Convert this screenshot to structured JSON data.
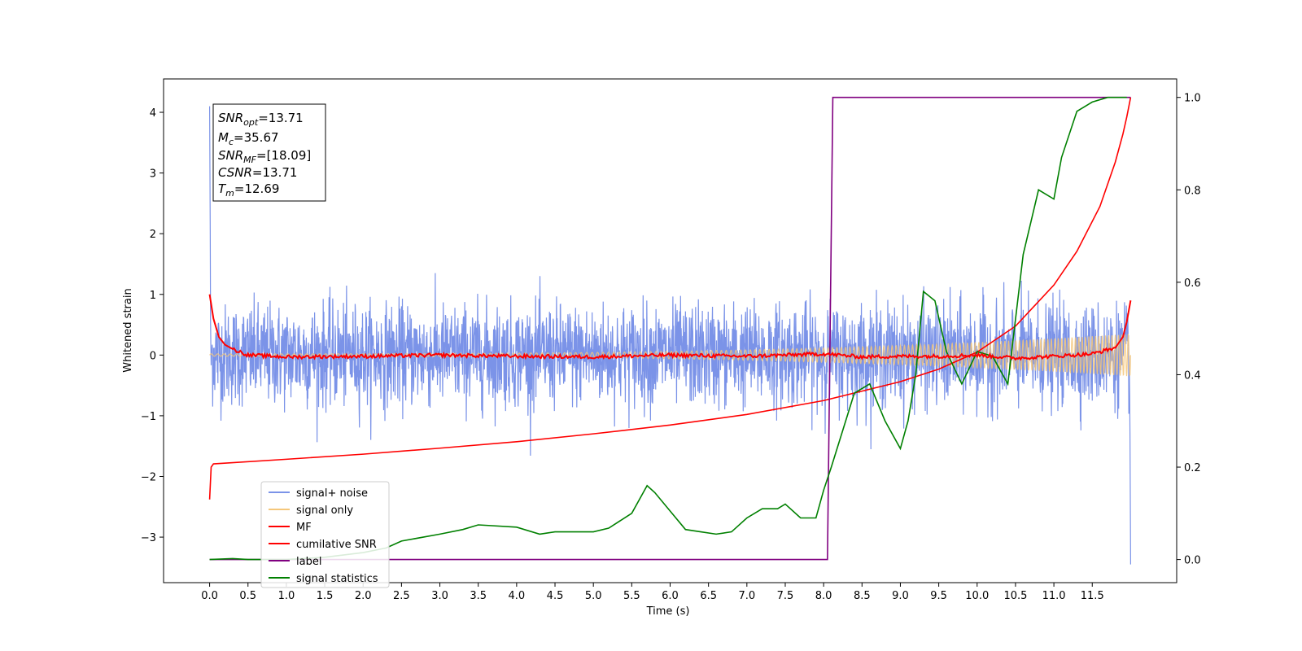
{
  "chart_data": {
    "type": "line",
    "xlabel": "Time (s)",
    "ylabel": "Whitened strain",
    "xlim": [
      -0.6,
      12.6
    ],
    "ylim": [
      -3.75,
      4.55
    ],
    "y2lim": [
      -0.05,
      1.04
    ],
    "x_ticks": [
      "0.0",
      "0.5",
      "1.0",
      "1.5",
      "2.0",
      "2.5",
      "3.0",
      "3.5",
      "4.0",
      "4.5",
      "5.0",
      "5.5",
      "6.0",
      "6.5",
      "7.0",
      "7.5",
      "8.0",
      "8.5",
      "9.0",
      "9.5",
      "10.0",
      "10.5",
      "11.0",
      "11.5"
    ],
    "y_ticks": [
      -3,
      -2,
      -1,
      0,
      1,
      2,
      3,
      4
    ],
    "y_tick_labels": [
      "−3",
      "−2",
      "−1",
      "0",
      "1",
      "2",
      "3",
      "4"
    ],
    "y2_ticks": [
      0.0,
      0.2,
      0.4,
      0.6,
      0.8,
      1.0
    ],
    "y2_tick_labels": [
      "0.0",
      "0.2",
      "0.4",
      "0.6",
      "0.8",
      "1.0"
    ],
    "annotation": {
      "lines": [
        {
          "base": "SNR",
          "sub": "opt",
          "value": "=13.71"
        },
        {
          "base": "M",
          "sub": "c",
          "value": "=35.67"
        },
        {
          "base": "SNR",
          "sub": "MF",
          "value": "=[18.09]"
        },
        {
          "base": "CSNR",
          "sub": "",
          "value": "=13.71"
        },
        {
          "base": "T",
          "sub": "m",
          "value": "=12.69"
        }
      ]
    },
    "legend": {
      "position": "lower-left",
      "entries": [
        {
          "label": "signal+ noise",
          "color": "#7b93e8"
        },
        {
          "label": "signal only",
          "color": "#f5c77a"
        },
        {
          "label": "MF",
          "color": "#ff0000"
        },
        {
          "label": "cumilative SNR",
          "color": "#ff0000"
        },
        {
          "label": "label",
          "color": "#800080"
        },
        {
          "label": "signal statistics",
          "color": "#008000"
        }
      ]
    },
    "series": [
      {
        "name": "signal+ noise",
        "axis": "left",
        "color": "#7b93e8",
        "kind": "noise",
        "x_range": [
          0,
          12
        ],
        "amplitude": 0.75,
        "spike_at_start": 4.1,
        "spike_at_end": -3.45
      },
      {
        "name": "signal only",
        "axis": "left",
        "color": "#f5c77a",
        "kind": "chirp",
        "x_range": [
          0,
          12
        ],
        "start_amplitude": 0.02,
        "end_amplitude": 0.35
      },
      {
        "name": "MF",
        "axis": "left",
        "color": "#ff0000",
        "x": [
          0.0,
          0.05,
          0.12,
          0.2,
          0.3,
          0.5,
          1.0,
          2.0,
          3.0,
          4.0,
          5.0,
          6.0,
          7.0,
          8.0,
          8.5,
          9.0,
          9.5,
          10.0,
          10.5,
          11.0,
          11.5,
          11.8,
          11.9,
          11.95,
          12.0
        ],
        "y": [
          1.0,
          0.6,
          0.3,
          0.17,
          0.1,
          0.0,
          -0.03,
          -0.02,
          0.0,
          -0.02,
          -0.03,
          0.0,
          -0.02,
          0.02,
          -0.03,
          -0.02,
          -0.02,
          0.0,
          -0.05,
          -0.02,
          0.02,
          0.12,
          0.3,
          0.55,
          0.9
        ]
      },
      {
        "name": "cumilative SNR",
        "axis": "right",
        "color": "#ff0000",
        "x": [
          0.0,
          0.02,
          0.05,
          1.0,
          2.0,
          3.0,
          4.0,
          5.0,
          6.0,
          7.0,
          8.0,
          9.0,
          9.5,
          10.0,
          10.5,
          11.0,
          11.3,
          11.6,
          11.8,
          11.9,
          11.95,
          12.0
        ],
        "y": [
          0.13,
          0.2,
          0.207,
          0.217,
          0.228,
          0.241,
          0.255,
          0.272,
          0.291,
          0.314,
          0.344,
          0.385,
          0.412,
          0.449,
          0.505,
          0.594,
          0.667,
          0.764,
          0.86,
          0.921,
          0.958,
          1.0
        ]
      },
      {
        "name": "label",
        "axis": "right",
        "color": "#800080",
        "x": [
          0.0,
          8.05,
          8.12,
          12.0
        ],
        "y": [
          0.0,
          0.0,
          1.0,
          1.0
        ]
      },
      {
        "name": "signal statistics",
        "axis": "right",
        "color": "#008000",
        "x": [
          0.0,
          0.3,
          0.5,
          1.0,
          1.5,
          2.0,
          2.3,
          2.5,
          3.0,
          3.3,
          3.5,
          4.0,
          4.3,
          4.5,
          5.0,
          5.2,
          5.5,
          5.7,
          5.8,
          6.0,
          6.2,
          6.4,
          6.6,
          6.8,
          7.0,
          7.2,
          7.4,
          7.5,
          7.7,
          7.9,
          8.0,
          8.1,
          8.25,
          8.4,
          8.6,
          8.8,
          9.0,
          9.1,
          9.2,
          9.3,
          9.45,
          9.6,
          9.8,
          10.0,
          10.2,
          10.4,
          10.6,
          10.8,
          11.0,
          11.1,
          11.3,
          11.5,
          11.7,
          11.95
        ],
        "y": [
          0.0,
          0.002,
          0.0,
          0.0,
          0.005,
          0.015,
          0.025,
          0.04,
          0.055,
          0.065,
          0.075,
          0.07,
          0.055,
          0.06,
          0.06,
          0.068,
          0.1,
          0.16,
          0.145,
          0.105,
          0.065,
          0.06,
          0.055,
          0.06,
          0.09,
          0.11,
          0.11,
          0.12,
          0.09,
          0.09,
          0.15,
          0.2,
          0.28,
          0.36,
          0.38,
          0.3,
          0.24,
          0.3,
          0.4,
          0.58,
          0.56,
          0.45,
          0.38,
          0.45,
          0.44,
          0.38,
          0.66,
          0.8,
          0.78,
          0.87,
          0.97,
          0.99,
          1.0,
          1.0
        ]
      }
    ]
  }
}
